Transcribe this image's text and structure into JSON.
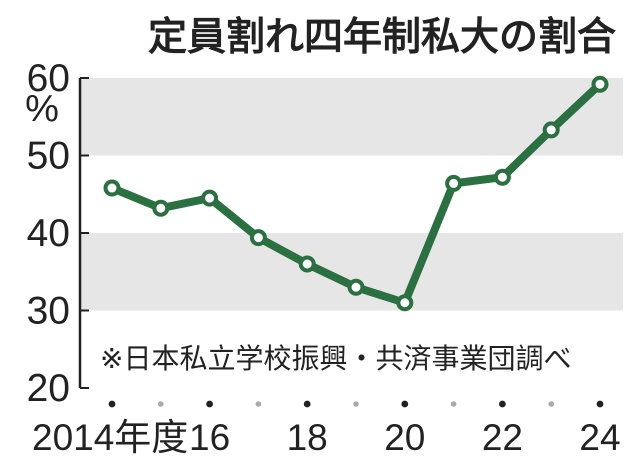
{
  "chart_data": {
    "type": "line",
    "title": "定員割れ四年制私大の割合",
    "y_unit": "%",
    "ylim": [
      20,
      60
    ],
    "y_ticks": [
      20,
      30,
      40,
      50,
      60
    ],
    "shaded_bands": [
      [
        30,
        40
      ],
      [
        50,
        60
      ]
    ],
    "x": [
      2014,
      2015,
      2016,
      2017,
      2018,
      2019,
      2020,
      2021,
      2022,
      2023,
      2024
    ],
    "x_tick_labels": [
      "2014年度",
      "",
      "16",
      "",
      "18",
      "",
      "20",
      "",
      "22",
      "",
      "24"
    ],
    "series": [
      {
        "values": [
          45.8,
          43.2,
          44.5,
          39.4,
          36.0,
          33.0,
          31.0,
          46.4,
          47.2,
          53.3,
          59.2
        ]
      }
    ],
    "grid": false,
    "legend": "none",
    "colors": {
      "line": "#2a7040",
      "marker_fill": "#ffffff",
      "band": "#e6e6e6",
      "axis": "#222222",
      "dot_major": "#222222",
      "dot_minor": "#aaaaaa"
    }
  },
  "source_note": "※日本私立学校振興・共済事業団調べ"
}
